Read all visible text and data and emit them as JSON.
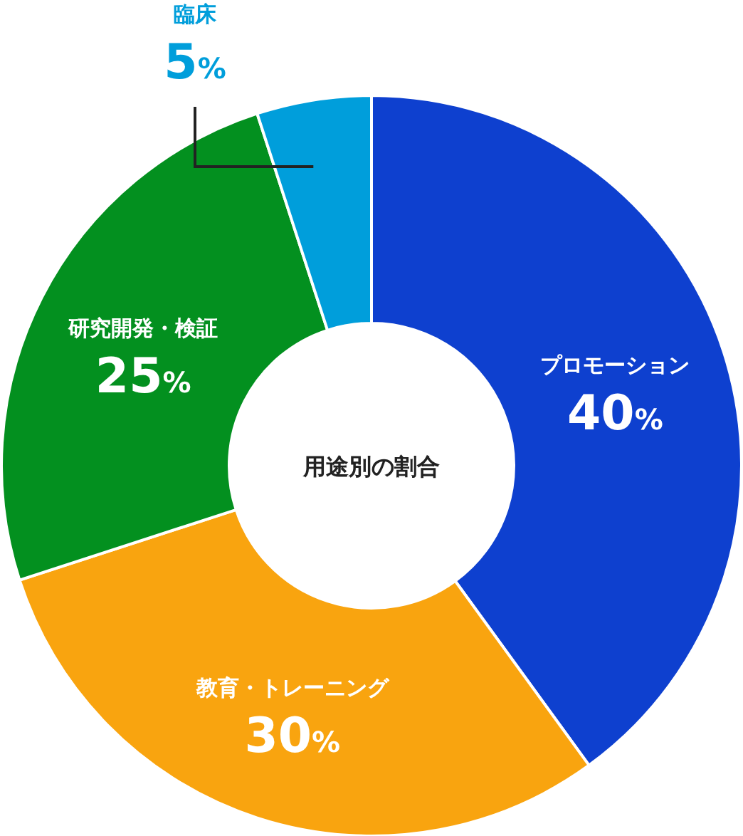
{
  "chart_data": {
    "type": "donut",
    "title": "用途別の割合",
    "categories": [
      "プロモーション",
      "教育・トレーニング",
      "研究開発・検証",
      "臨床"
    ],
    "values": [
      40,
      30,
      25,
      5
    ],
    "colors": [
      "#0e40cf",
      "#f9a40f",
      "#03901f",
      "#009edb"
    ],
    "value_labels": [
      "40%",
      "30%",
      "25%",
      "5%"
    ]
  }
}
